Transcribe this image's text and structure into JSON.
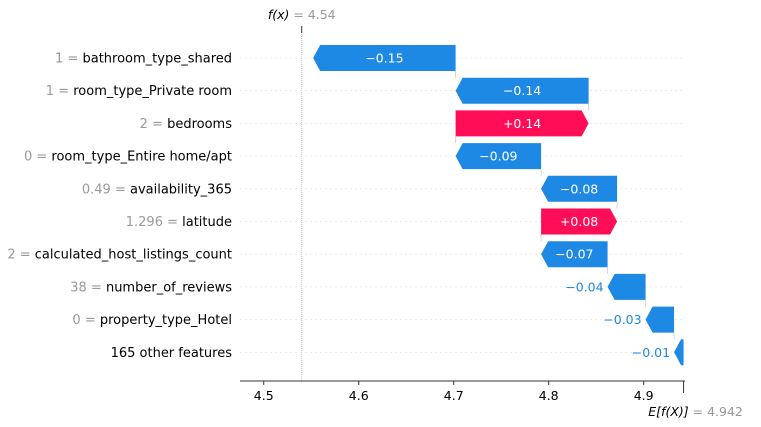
{
  "chart_data": {
    "type": "waterfall",
    "base_value": 4.942,
    "output_value": 4.54,
    "fx_label": {
      "name": "f(x)",
      "value_text": "= 4.54"
    },
    "efx_label": {
      "name": "E[f(X)]",
      "value_text": "= 4.942"
    },
    "xlim": [
      4.475,
      4.9435
    ],
    "xticks": [
      "4.5",
      "4.6",
      "4.7",
      "4.8",
      "4.9"
    ],
    "features": [
      {
        "value": "1",
        "name": "bathroom_type_shared",
        "shap": -0.15,
        "label": "−0.15"
      },
      {
        "value": "1",
        "name": "room_type_Private room",
        "shap": -0.14,
        "label": "−0.14"
      },
      {
        "value": "2",
        "name": "bedrooms",
        "shap": 0.14,
        "label": "+0.14"
      },
      {
        "value": "0",
        "name": "room_type_Entire home/apt",
        "shap": -0.09,
        "label": "−0.09"
      },
      {
        "value": "0.49",
        "name": "availability_365",
        "shap": -0.08,
        "label": "−0.08"
      },
      {
        "value": "1.296",
        "name": "latitude",
        "shap": 0.08,
        "label": "+0.08"
      },
      {
        "value": "2",
        "name": "calculated_host_listings_count",
        "shap": -0.07,
        "label": "−0.07"
      },
      {
        "value": "38",
        "name": "number_of_reviews",
        "shap": -0.04,
        "label": "−0.04"
      },
      {
        "value": "0",
        "name": "property_type_Hotel",
        "shap": -0.03,
        "label": "−0.03"
      },
      {
        "value": "",
        "name": "165 other features",
        "shap": -0.01,
        "label": "−0.01"
      }
    ],
    "colors": {
      "positive": "#ff0d57",
      "negative": "#1e88e5",
      "value_text": "#999999",
      "gridline": "#cccccc"
    }
  }
}
